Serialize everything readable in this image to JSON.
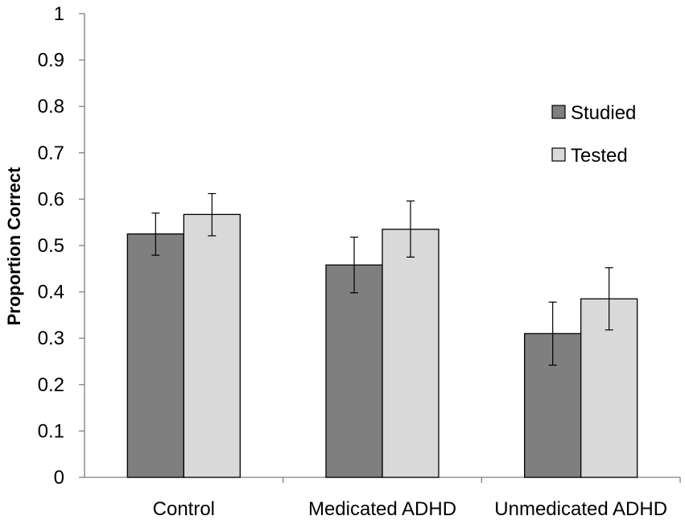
{
  "chart_data": {
    "type": "bar",
    "title": "",
    "xlabel": "",
    "ylabel": "Proportion Correct",
    "ylim": [
      0,
      1
    ],
    "yticks": [
      0,
      0.1,
      0.2,
      0.3,
      0.4,
      0.5,
      0.6,
      0.7,
      0.8,
      0.9,
      1
    ],
    "ytick_labels": [
      "0",
      "0.1",
      "0.2",
      "0.3",
      "0.4",
      "0.5",
      "0.6",
      "0.7",
      "0.8",
      "0.9",
      "1"
    ],
    "categories": [
      "Control",
      "Medicated ADHD",
      "Unmedicated ADHD"
    ],
    "legend_position": "right",
    "series": [
      {
        "name": "Studied",
        "color": "#7f7f7f",
        "values": [
          0.525,
          0.458,
          0.31
        ],
        "error_low": [
          0.479,
          0.398,
          0.242
        ],
        "error_high": [
          0.57,
          0.518,
          0.378
        ]
      },
      {
        "name": "Tested",
        "color": "#d9d9d9",
        "values": [
          0.567,
          0.535,
          0.385
        ],
        "error_low": [
          0.521,
          0.475,
          0.318
        ],
        "error_high": [
          0.612,
          0.596,
          0.452
        ]
      }
    ]
  }
}
